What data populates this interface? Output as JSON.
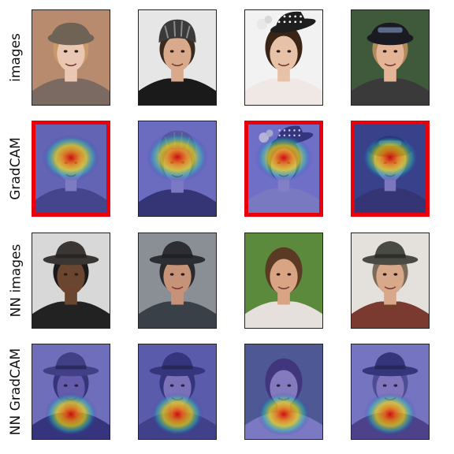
{
  "figure": {
    "rows": [
      {
        "label": "images",
        "type": "photo",
        "flags": [
          false,
          false,
          false,
          false
        ],
        "cells": [
          {
            "bg": "#b88a6e",
            "skin": "#e9c7b2",
            "hair": "#c89a6a",
            "hat": "#6e6355",
            "shirt": "#7a6a62",
            "hatStyle": "cap"
          },
          {
            "bg": "#e6e6e6",
            "skin": "#d8a98a",
            "hair": "#3a2a20",
            "hat": "#3a3a3a",
            "shirt": "#1a1a1a",
            "hatStyle": "helmet"
          },
          {
            "bg": "#f2f2f2",
            "skin": "#e8c2a8",
            "hair": "#3a2415",
            "hat": "#1e1e1e",
            "shirt": "#f0e8e4",
            "hatStyle": "fascinator"
          },
          {
            "bg": "#3f5a3a",
            "skin": "#e3b496",
            "hair": "#b08a5a",
            "hat": "#1a1a22",
            "shirt": "#3a3a3a",
            "hatStyle": "cap-dark"
          }
        ]
      },
      {
        "label": "GradCAM",
        "type": "cam-top",
        "flags": [
          true,
          false,
          true,
          true
        ],
        "cells": [
          {
            "bg": "#7a7ab8",
            "skin": "#9d9ac8",
            "hair": "#8a86b8",
            "hat": "#7c78a8",
            "shirt": "#505080",
            "hatStyle": "cap"
          },
          {
            "bg": "#8484c6",
            "skin": "#9a98cc",
            "hair": "#5a5a88",
            "hat": "#6a6a98",
            "shirt": "#3a3a60",
            "hatStyle": "helmet"
          },
          {
            "bg": "#8a8ad0",
            "skin": "#a4a0d0",
            "hair": "#4a4a78",
            "hat": "#3a3a6a",
            "shirt": "#9898c8",
            "hatStyle": "fascinator"
          },
          {
            "bg": "#3e4a7a",
            "skin": "#9a94c4",
            "hair": "#8a80aa",
            "hat": "#2a2a55",
            "shirt": "#3a3a60",
            "hatStyle": "cap-dark"
          }
        ]
      },
      {
        "label": "NN images",
        "type": "photo",
        "flags": [
          false,
          false,
          false,
          false
        ],
        "cells": [
          {
            "bg": "#d8d8d8",
            "skin": "#6a4630",
            "hair": "#1a1a1a",
            "hat": "#3a3634",
            "shirt": "#222222",
            "hatStyle": "fedora"
          },
          {
            "bg": "#8a8f95",
            "skin": "#c79378",
            "hair": "#2a2a2a",
            "hat": "#2c2e34",
            "shirt": "#3a4048",
            "hatStyle": "fedora"
          },
          {
            "bg": "#5c8a3c",
            "skin": "#d8a484",
            "hair": "#5a3a22",
            "hat": "#5a3a22",
            "shirt": "#e6e0dc",
            "hatStyle": "none"
          },
          {
            "bg": "#e4e0dc",
            "skin": "#d8a88a",
            "hair": "#7a6a58",
            "hat": "#4a4a44",
            "shirt": "#7a3a30",
            "hatStyle": "fedora"
          }
        ]
      },
      {
        "label": "NN GradCAM",
        "type": "cam-bottom",
        "flags": [
          false,
          false,
          false,
          false
        ],
        "cells": [
          {
            "bg": "#8a88c0",
            "skin": "#7a70a8",
            "hair": "#3a3a68",
            "hat": "#4a4878",
            "shirt": "#3a3868",
            "hatStyle": "fedora"
          },
          {
            "bg": "#6c6ea8",
            "skin": "#9a8cbc",
            "hair": "#3a3a6a",
            "hat": "#3a3a6a",
            "shirt": "#4a4a7a",
            "hatStyle": "fedora"
          },
          {
            "bg": "#5a6a8a",
            "skin": "#a69ac4",
            "hair": "#4a3a6a",
            "hat": "#4a3a6a",
            "shirt": "#9a98c8",
            "hatStyle": "none"
          },
          {
            "bg": "#9290c8",
            "skin": "#a294c4",
            "hair": "#5a5a88",
            "hat": "#3a3a68",
            "shirt": "#5a4a7a",
            "hatStyle": "fedora"
          }
        ]
      }
    ]
  }
}
